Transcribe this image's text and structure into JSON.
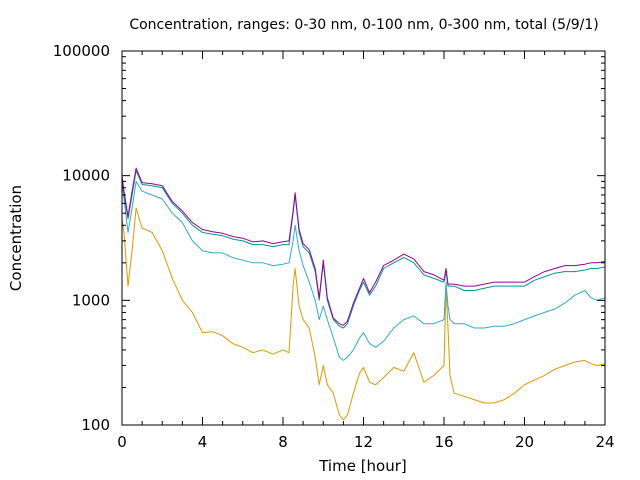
{
  "chart_data": {
    "type": "line",
    "title": "Concentration, ranges: 0-30 nm, 0-100 nm, 0-300 nm, total (5/9/1)",
    "xlabel": "Time [hour]",
    "ylabel": "Concentration",
    "xlim": [
      0,
      24
    ],
    "ylim": [
      100,
      100000
    ],
    "yscale": "log",
    "grid": false,
    "legend": "none",
    "x_ticks": [
      0,
      4,
      8,
      12,
      16,
      20,
      24
    ],
    "y_ticks": [
      100,
      1000,
      10000,
      100000
    ],
    "x_tick_labels": [
      "0",
      "4",
      "8",
      "12",
      "16",
      "20",
      "24"
    ],
    "y_tick_labels": [
      "100",
      "1000",
      "10000",
      "100000"
    ],
    "series": [
      {
        "color": "#dd9900",
        "x": [
          0,
          0.1,
          0.3,
          0.5,
          0.7,
          1,
          1.5,
          2,
          2.5,
          3,
          3.5,
          4,
          4.5,
          5,
          5.5,
          6,
          6.5,
          7,
          7.5,
          8,
          8.3,
          8.5,
          8.6,
          8.8,
          9,
          9.3,
          9.6,
          9.8,
          10,
          10.2,
          10.5,
          10.8,
          11,
          11.2,
          11.5,
          11.8,
          12,
          12.3,
          12.6,
          13,
          13.5,
          14,
          14.5,
          15,
          15.5,
          16,
          16.1,
          16.2,
          16.3,
          16.5,
          17,
          17.5,
          18,
          18.5,
          19,
          19.5,
          20,
          20.5,
          21,
          21.5,
          22,
          22.5,
          23,
          23.3,
          23.6,
          24
        ],
        "values": [
          4500,
          3500,
          1300,
          2500,
          5500,
          3800,
          3500,
          2500,
          1500,
          1000,
          800,
          550,
          560,
          520,
          450,
          420,
          380,
          400,
          370,
          400,
          380,
          1300,
          1800,
          900,
          700,
          600,
          350,
          210,
          300,
          210,
          180,
          120,
          110,
          120,
          180,
          260,
          290,
          220,
          210,
          240,
          290,
          270,
          380,
          220,
          250,
          300,
          1300,
          600,
          250,
          180,
          170,
          160,
          150,
          150,
          160,
          180,
          210,
          230,
          250,
          280,
          300,
          320,
          330,
          310,
          300,
          310
        ]
      },
      {
        "color": "#33aacc",
        "x": [
          0,
          0.1,
          0.3,
          0.5,
          0.7,
          1,
          1.5,
          2,
          2.5,
          3,
          3.5,
          4,
          4.5,
          5,
          5.5,
          6,
          6.5,
          7,
          7.5,
          8,
          8.3,
          8.5,
          8.6,
          8.8,
          9,
          9.3,
          9.6,
          9.8,
          10,
          10.2,
          10.5,
          10.8,
          11,
          11.2,
          11.5,
          11.8,
          12,
          12.3,
          12.6,
          13,
          13.5,
          14,
          14.5,
          15,
          15.5,
          16,
          16.1,
          16.2,
          16.3,
          16.5,
          17,
          17.5,
          18,
          18.5,
          19,
          19.5,
          20,
          20.5,
          21,
          21.5,
          22,
          22.5,
          23,
          23.3,
          23.6,
          24
        ],
        "values": [
          9000,
          6500,
          3500,
          5500,
          9000,
          7500,
          7000,
          6500,
          5000,
          4200,
          3000,
          2500,
          2400,
          2400,
          2200,
          2100,
          2000,
          2000,
          1900,
          1950,
          2000,
          3000,
          4000,
          2500,
          1900,
          1400,
          1000,
          700,
          900,
          700,
          500,
          350,
          330,
          350,
          400,
          500,
          550,
          450,
          420,
          470,
          600,
          700,
          750,
          650,
          650,
          700,
          1400,
          900,
          700,
          650,
          650,
          600,
          600,
          620,
          620,
          650,
          700,
          750,
          800,
          850,
          950,
          1100,
          1200,
          1050,
          1000,
          1050
        ]
      },
      {
        "color": "#009988",
        "x": [
          0,
          0.1,
          0.3,
          0.5,
          0.7,
          1,
          1.5,
          2,
          2.5,
          3,
          3.5,
          4,
          4.5,
          5,
          5.5,
          6,
          6.5,
          7,
          7.5,
          8,
          8.3,
          8.5,
          8.6,
          8.8,
          9,
          9.3,
          9.6,
          9.8,
          10,
          10.2,
          10.5,
          10.8,
          11,
          11.2,
          11.5,
          11.8,
          12,
          12.3,
          12.6,
          13,
          13.5,
          14,
          14.5,
          15,
          15.5,
          16,
          16.1,
          16.2,
          16.3,
          16.5,
          17,
          17.5,
          18,
          18.5,
          19,
          19.5,
          20,
          20.5,
          21,
          21.5,
          22,
          22.5,
          23,
          23.3,
          23.6,
          24
        ],
        "values": [
          9500,
          7000,
          4500,
          7000,
          11000,
          8500,
          8300,
          8000,
          6000,
          5000,
          4000,
          3500,
          3400,
          3300,
          3100,
          3000,
          2800,
          2800,
          2700,
          2800,
          2800,
          5000,
          7000,
          3500,
          2700,
          2400,
          1700,
          1000,
          2000,
          1000,
          700,
          620,
          600,
          650,
          900,
          1200,
          1400,
          1100,
          1300,
          1800,
          2000,
          2200,
          2000,
          1600,
          1500,
          1400,
          1700,
          1300,
          1300,
          1300,
          1200,
          1200,
          1250,
          1300,
          1300,
          1300,
          1300,
          1450,
          1550,
          1650,
          1700,
          1700,
          1750,
          1800,
          1800,
          1850
        ]
      },
      {
        "color": "#990099",
        "x": [
          0,
          0.1,
          0.3,
          0.5,
          0.7,
          1,
          1.5,
          2,
          2.5,
          3,
          3.5,
          4,
          4.5,
          5,
          5.5,
          6,
          6.5,
          7,
          7.5,
          8,
          8.3,
          8.5,
          8.6,
          8.8,
          9,
          9.3,
          9.6,
          9.8,
          10,
          10.2,
          10.5,
          10.8,
          11,
          11.2,
          11.5,
          11.8,
          12,
          12.3,
          12.6,
          13,
          13.5,
          14,
          14.5,
          15,
          15.5,
          16,
          16.1,
          16.2,
          16.3,
          16.5,
          17,
          17.5,
          18,
          18.5,
          19,
          19.5,
          20,
          20.5,
          21,
          21.5,
          22,
          22.5,
          23,
          23.3,
          23.6,
          24
        ],
        "values": [
          10000,
          7500,
          4700,
          7500,
          11500,
          8800,
          8600,
          8300,
          6200,
          5200,
          4200,
          3700,
          3550,
          3450,
          3250,
          3150,
          2950,
          3000,
          2850,
          2950,
          3000,
          5200,
          7300,
          3700,
          2850,
          2550,
          1800,
          1050,
          2100,
          1050,
          720,
          650,
          630,
          680,
          950,
          1250,
          1500,
          1150,
          1400,
          1900,
          2100,
          2350,
          2150,
          1700,
          1600,
          1450,
          1800,
          1350,
          1350,
          1350,
          1300,
          1300,
          1350,
          1400,
          1400,
          1400,
          1400,
          1550,
          1700,
          1800,
          1900,
          1900,
          1950,
          2000,
          2000,
          2050
        ]
      }
    ]
  }
}
